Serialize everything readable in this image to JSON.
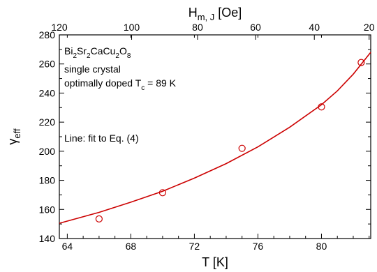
{
  "chart_data": {
    "type": "scatter",
    "xlabel": "T [K]",
    "ylabel": {
      "main": "γ",
      "sub": "eff"
    },
    "top_xlabel": {
      "main": "H",
      "sub": "m, J",
      "unit": " [Oe]"
    },
    "xlim": [
      63.5,
      83.1
    ],
    "ylim": [
      140,
      280
    ],
    "x_ticks": [
      64,
      68,
      72,
      76,
      80
    ],
    "x_minor_step": 1,
    "y_ticks": [
      140,
      160,
      180,
      200,
      220,
      240,
      260,
      280
    ],
    "y_minor_step": 10,
    "top_ticks": [
      {
        "label": "120",
        "x": 63.5
      },
      {
        "label": "100",
        "x": 68.05
      },
      {
        "label": "80",
        "x": 72.2
      },
      {
        "label": "60",
        "x": 75.85
      },
      {
        "label": "40",
        "x": 79.55
      },
      {
        "label": "20",
        "x": 83.0
      }
    ],
    "series": [
      {
        "kind": "points",
        "color": "#cc0000",
        "points": [
          {
            "x": 66.0,
            "y": 153.5
          },
          {
            "x": 70.0,
            "y": 171.5
          },
          {
            "x": 75.0,
            "y": 202.0
          },
          {
            "x": 80.0,
            "y": 230.5
          },
          {
            "x": 82.5,
            "y": 261.0
          }
        ]
      },
      {
        "kind": "line",
        "color": "#cc0000",
        "points": [
          {
            "x": 63.5,
            "y": 150.5
          },
          {
            "x": 64.0,
            "y": 152.0
          },
          {
            "x": 66.0,
            "y": 158.0
          },
          {
            "x": 68.0,
            "y": 165.0
          },
          {
            "x": 70.0,
            "y": 172.5
          },
          {
            "x": 72.0,
            "y": 181.5
          },
          {
            "x": 74.0,
            "y": 191.5
          },
          {
            "x": 76.0,
            "y": 203.0
          },
          {
            "x": 78.0,
            "y": 216.5
          },
          {
            "x": 80.0,
            "y": 232.0
          },
          {
            "x": 81.0,
            "y": 241.5
          },
          {
            "x": 82.0,
            "y": 253.0
          },
          {
            "x": 83.1,
            "y": 268.0
          }
        ]
      }
    ],
    "annotations": {
      "material": [
        {
          "t": "Bi",
          "sub": false
        },
        {
          "t": "2",
          "sub": true
        },
        {
          "t": "Sr",
          "sub": false
        },
        {
          "t": "2",
          "sub": true
        },
        {
          "t": "CaCu",
          "sub": false
        },
        {
          "t": "2",
          "sub": true
        },
        {
          "t": "O",
          "sub": false
        },
        {
          "t": "8",
          "sub": true
        }
      ],
      "sample": "single crystal",
      "doping": [
        {
          "t": "optimally doped T",
          "sub": false
        },
        {
          "t": "c",
          "sub": true
        },
        {
          "t": " = 89 K",
          "sub": false
        }
      ],
      "fit_note": "Line: fit to Eq. (4)"
    }
  }
}
